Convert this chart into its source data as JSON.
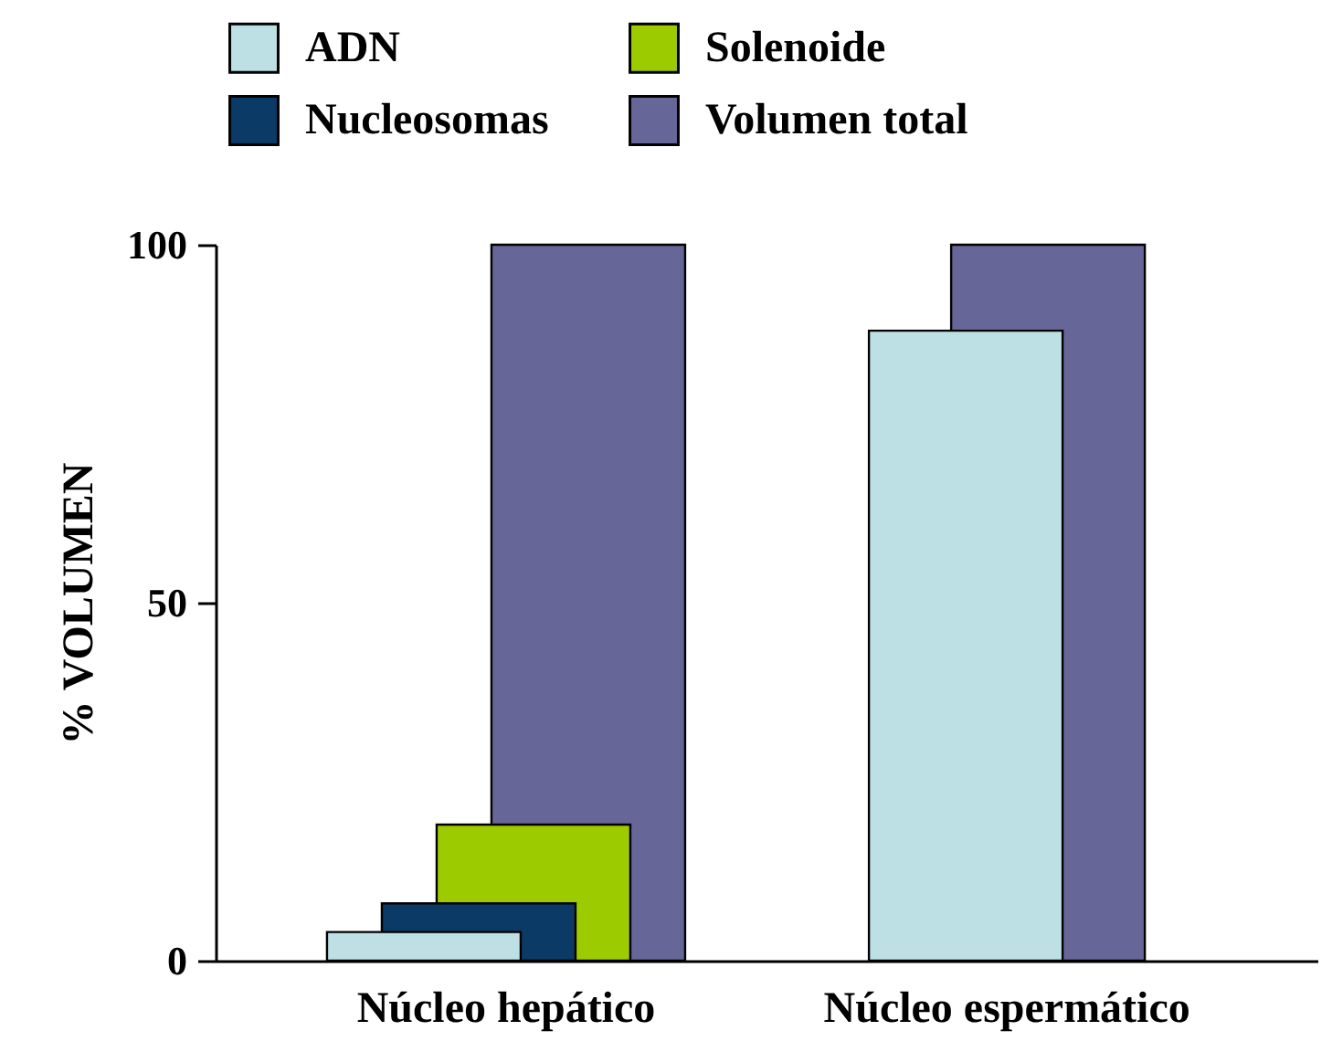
{
  "chart_data": {
    "type": "bar",
    "ylabel": "% VOLUMEN",
    "categories": [
      "Núcleo hepático",
      "Núcleo espermático"
    ],
    "series": [
      {
        "name": "ADN",
        "color": "#bde0e4",
        "values": [
          4,
          88
        ]
      },
      {
        "name": "Nucleosomas",
        "color": "#0b3a66",
        "values": [
          8,
          null
        ]
      },
      {
        "name": "Solenoide",
        "color": "#9ccc00",
        "values": [
          19,
          null
        ]
      },
      {
        "name": "Volumen total",
        "color": "#676699",
        "values": [
          100,
          100
        ]
      }
    ],
    "ylim": [
      0,
      100
    ],
    "yticks": [
      0,
      50,
      100
    ],
    "grid": false,
    "legend": "top"
  }
}
